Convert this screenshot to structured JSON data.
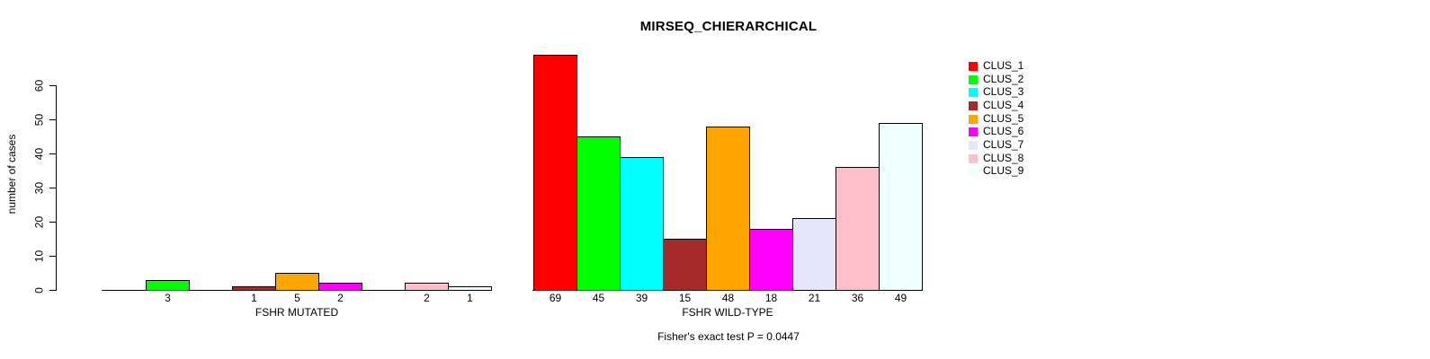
{
  "title": "MIRSEQ_CHIERARCHICAL",
  "chart_data": {
    "type": "bar",
    "title": "MIRSEQ_CHIERARCHICAL",
    "xlabel": "",
    "ylabel": "number of cases",
    "ylim": [
      0,
      60
    ],
    "yticks": [
      0,
      10,
      20,
      30,
      40,
      50,
      60
    ],
    "grid": false,
    "legend_position": "right",
    "bar_borders": "black",
    "clusters": [
      {
        "name": "CLUS_1",
        "color": "#ff0000"
      },
      {
        "name": "CLUS_2",
        "color": "#00ff00"
      },
      {
        "name": "CLUS_3",
        "color": "#00ffff"
      },
      {
        "name": "CLUS_4",
        "color": "#a52a2a"
      },
      {
        "name": "CLUS_5",
        "color": "#ffa500"
      },
      {
        "name": "CLUS_6",
        "color": "#ff00ff"
      },
      {
        "name": "CLUS_7",
        "color": "#e6e6fa"
      },
      {
        "name": "CLUS_8",
        "color": "#ffc0cb"
      },
      {
        "name": "CLUS_9",
        "color": "#f0ffff"
      }
    ],
    "groups": [
      {
        "label": "FSHR MUTATED",
        "values": [
          0,
          3,
          0,
          1,
          5,
          2,
          0,
          2,
          1
        ]
      },
      {
        "label": "FSHR WILD-TYPE",
        "values": [
          69,
          45,
          39,
          15,
          48,
          18,
          21,
          36,
          49
        ]
      }
    ],
    "bar_labels": "values_nonzero_only",
    "caption": "Fisher's exact test P = 0.0447"
  }
}
